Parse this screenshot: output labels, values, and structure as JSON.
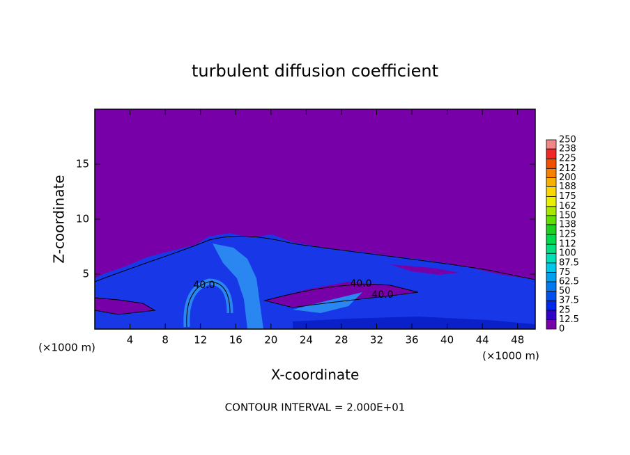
{
  "chart_data": {
    "type": "contour",
    "title": "turbulent diffusion coefficient",
    "x_label": "X-coordinate",
    "y_label": "Z-coordinate",
    "x_unit_left": "(×1000 m)",
    "x_unit_right": "(×1000 m)",
    "footer": "CONTOUR INTERVAL = 2.000E+01",
    "xlim": [
      0,
      50
    ],
    "xticks": [
      4,
      8,
      12,
      16,
      20,
      24,
      28,
      32,
      36,
      40,
      44,
      48
    ],
    "ylim": [
      0,
      20
    ],
    "yticks": [
      5,
      10,
      15
    ],
    "annotations": [
      "40.0",
      "40.0",
      "40.0"
    ],
    "colorbar": {
      "levels": [
        0,
        12.5,
        25,
        37.5,
        50,
        62.5,
        75,
        87.5,
        100,
        112,
        125,
        138,
        150,
        162,
        175,
        188,
        200,
        212,
        225,
        238,
        250
      ],
      "colors": [
        "#7800a8",
        "#3000c8",
        "#0028e8",
        "#0050f0",
        "#0078f0",
        "#00a0f0",
        "#00c8e8",
        "#00e0b8",
        "#00e080",
        "#00d850",
        "#20d020",
        "#60e000",
        "#a8e800",
        "#e8f000",
        "#f8d800",
        "#f8b000",
        "#f88000",
        "#f05000",
        "#f02828",
        "#f08888"
      ]
    }
  }
}
